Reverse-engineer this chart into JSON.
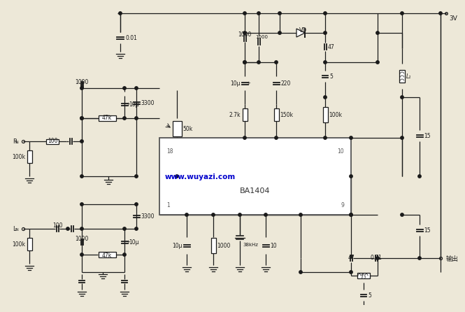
{
  "bg_color": "#ede8d8",
  "line_color": "#1a1a1a",
  "watermark_text": "www.wuyazi.com",
  "watermark_color": "#0000cc",
  "chip_label": "BA1404",
  "supply_label": "3V",
  "output_label": "输出"
}
